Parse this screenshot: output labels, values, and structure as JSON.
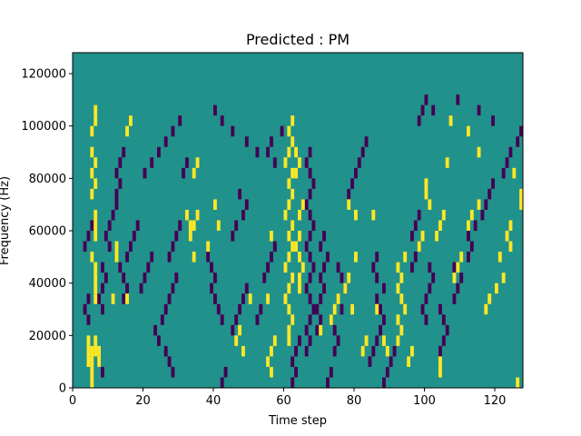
{
  "chart_data": {
    "type": "heatmap",
    "title": "Predicted : PM",
    "xlabel": "Time step",
    "ylabel": "Frequency (Hz)",
    "xlim": [
      0,
      128
    ],
    "ylim": [
      0,
      128000
    ],
    "x_ticks": [
      0,
      20,
      40,
      60,
      80,
      100,
      120
    ],
    "x_tick_labels": [
      "0",
      "20",
      "40",
      "60",
      "80",
      "100",
      "120"
    ],
    "y_ticks": [
      0,
      20000,
      40000,
      60000,
      80000,
      100000,
      120000
    ],
    "y_tick_labels": [
      "0",
      "20000",
      "40000",
      "60000",
      "80000",
      "100000",
      "120000"
    ],
    "grid": false,
    "legend": "none",
    "cell_width_timesteps": 1,
    "cell_height_hz": 4000,
    "colors": {
      "background": "#21918c",
      "low": "#440154",
      "high": "#fde725"
    },
    "high_cells": [
      [
        5,
        0
      ],
      [
        5,
        1
      ],
      [
        5,
        2
      ],
      [
        5,
        3
      ],
      [
        4,
        2
      ],
      [
        4,
        3
      ],
      [
        4,
        4
      ],
      [
        6,
        3
      ],
      [
        6,
        4
      ],
      [
        6,
        14
      ],
      [
        6,
        15
      ],
      [
        6,
        16
      ],
      [
        5,
        18
      ],
      [
        6,
        19
      ],
      [
        5,
        20
      ],
      [
        6,
        21
      ],
      [
        5,
        22
      ],
      [
        6,
        8
      ],
      [
        6,
        9
      ],
      [
        6,
        10
      ],
      [
        6,
        11
      ],
      [
        5,
        12
      ],
      [
        5,
        24
      ],
      [
        6,
        25
      ],
      [
        6,
        26
      ],
      [
        7,
        2
      ],
      [
        7,
        3
      ],
      [
        12,
        12
      ],
      [
        12,
        13
      ],
      [
        11,
        8
      ],
      [
        15,
        8
      ],
      [
        33,
        14
      ],
      [
        34,
        15
      ],
      [
        33,
        15
      ],
      [
        35,
        16
      ],
      [
        32,
        16
      ],
      [
        34,
        20
      ],
      [
        35,
        21
      ],
      [
        46,
        4
      ],
      [
        47,
        5
      ],
      [
        48,
        3
      ],
      [
        50,
        8
      ],
      [
        56,
        3
      ],
      [
        57,
        4
      ],
      [
        55,
        8
      ],
      [
        56,
        14
      ],
      [
        61,
        4
      ],
      [
        61,
        5
      ],
      [
        62,
        6
      ],
      [
        61,
        7
      ],
      [
        60,
        8
      ],
      [
        61,
        9
      ],
      [
        62,
        10
      ],
      [
        60,
        11
      ],
      [
        61,
        12
      ],
      [
        62,
        13
      ],
      [
        61,
        14
      ],
      [
        62,
        15
      ],
      [
        60,
        16
      ],
      [
        61,
        17
      ],
      [
        62,
        18
      ],
      [
        61,
        19
      ],
      [
        62,
        20
      ],
      [
        60,
        21
      ],
      [
        61,
        22
      ],
      [
        62,
        23
      ],
      [
        61,
        24
      ],
      [
        62,
        25
      ],
      [
        64,
        9
      ],
      [
        64,
        10
      ],
      [
        65,
        11
      ],
      [
        64,
        12
      ],
      [
        63,
        13
      ],
      [
        64,
        14
      ],
      [
        64,
        16
      ],
      [
        65,
        17
      ],
      [
        63,
        20
      ],
      [
        64,
        21
      ],
      [
        63,
        22
      ],
      [
        73,
        6
      ],
      [
        74,
        7
      ],
      [
        75,
        8
      ],
      [
        77,
        9
      ],
      [
        78,
        10
      ],
      [
        79,
        7
      ],
      [
        80,
        12
      ],
      [
        82,
        3
      ],
      [
        83,
        4
      ],
      [
        86,
        7
      ],
      [
        92,
        4
      ],
      [
        93,
        5
      ],
      [
        92,
        6
      ],
      [
        94,
        7
      ],
      [
        93,
        8
      ],
      [
        92,
        9
      ],
      [
        93,
        10
      ],
      [
        92,
        11
      ],
      [
        94,
        12
      ],
      [
        95,
        2
      ],
      [
        96,
        3
      ],
      [
        100,
        18
      ],
      [
        100,
        19
      ],
      [
        104,
        1
      ],
      [
        104,
        2
      ],
      [
        103,
        14
      ],
      [
        104,
        15
      ],
      [
        108,
        10
      ],
      [
        109,
        11
      ],
      [
        110,
        12
      ],
      [
        112,
        15
      ],
      [
        113,
        16
      ],
      [
        115,
        17
      ],
      [
        115,
        22
      ],
      [
        117,
        7
      ],
      [
        118,
        8
      ],
      [
        120,
        9
      ],
      [
        122,
        10
      ],
      [
        123,
        14
      ],
      [
        124,
        15
      ],
      [
        126,
        0
      ],
      [
        127,
        17
      ],
      [
        127,
        18
      ],
      [
        128,
        19
      ],
      [
        15,
        24
      ],
      [
        16,
        25
      ],
      [
        34,
        12
      ],
      [
        38,
        13
      ],
      [
        41,
        15
      ],
      [
        40,
        17
      ],
      [
        55,
        2
      ],
      [
        56,
        1
      ],
      [
        70,
        5
      ],
      [
        78,
        17
      ],
      [
        80,
        16
      ],
      [
        85,
        16
      ],
      [
        88,
        4
      ],
      [
        89,
        3
      ],
      [
        98,
        13
      ],
      [
        99,
        14
      ],
      [
        101,
        17
      ],
      [
        105,
        16
      ],
      [
        106,
        21
      ],
      [
        107,
        25
      ],
      [
        112,
        24
      ],
      [
        121,
        12
      ],
      [
        124,
        13
      ],
      [
        125,
        20
      ]
    ],
    "low_cells": [
      [
        4,
        6
      ],
      [
        3,
        7
      ],
      [
        4,
        8
      ],
      [
        3,
        13
      ],
      [
        4,
        14
      ],
      [
        5,
        15
      ],
      [
        8,
        1
      ],
      [
        7,
        2
      ],
      [
        8,
        7
      ],
      [
        7,
        8
      ],
      [
        8,
        9
      ],
      [
        9,
        10
      ],
      [
        8,
        11
      ],
      [
        10,
        13
      ],
      [
        9,
        14
      ],
      [
        10,
        15
      ],
      [
        11,
        16
      ],
      [
        12,
        17
      ],
      [
        12,
        18
      ],
      [
        13,
        19
      ],
      [
        12,
        20
      ],
      [
        13,
        21
      ],
      [
        14,
        22
      ],
      [
        14,
        8
      ],
      [
        15,
        9
      ],
      [
        14,
        10
      ],
      [
        13,
        11
      ],
      [
        15,
        12
      ],
      [
        16,
        13
      ],
      [
        17,
        14
      ],
      [
        18,
        15
      ],
      [
        19,
        9
      ],
      [
        20,
        10
      ],
      [
        21,
        11
      ],
      [
        22,
        12
      ],
      [
        24,
        4
      ],
      [
        23,
        5
      ],
      [
        25,
        6
      ],
      [
        26,
        7
      ],
      [
        27,
        8
      ],
      [
        28,
        9
      ],
      [
        29,
        10
      ],
      [
        26,
        3
      ],
      [
        27,
        2
      ],
      [
        28,
        1
      ],
      [
        27,
        12
      ],
      [
        28,
        13
      ],
      [
        29,
        14
      ],
      [
        30,
        15
      ],
      [
        31,
        20
      ],
      [
        32,
        21
      ],
      [
        38,
        12
      ],
      [
        39,
        11
      ],
      [
        40,
        10
      ],
      [
        39,
        9
      ],
      [
        40,
        8
      ],
      [
        41,
        7
      ],
      [
        42,
        6
      ],
      [
        43,
        1
      ],
      [
        42,
        0
      ],
      [
        45,
        5
      ],
      [
        46,
        6
      ],
      [
        47,
        7
      ],
      [
        48,
        8
      ],
      [
        49,
        9
      ],
      [
        45,
        14
      ],
      [
        46,
        15
      ],
      [
        48,
        16
      ],
      [
        49,
        17
      ],
      [
        47,
        18
      ],
      [
        52,
        6
      ],
      [
        53,
        7
      ],
      [
        54,
        10
      ],
      [
        55,
        11
      ],
      [
        56,
        12
      ],
      [
        57,
        13
      ],
      [
        55,
        22
      ],
      [
        56,
        23
      ],
      [
        62,
        2
      ],
      [
        63,
        3
      ],
      [
        64,
        4
      ],
      [
        63,
        1
      ],
      [
        62,
        0
      ],
      [
        66,
        3
      ],
      [
        67,
        4
      ],
      [
        66,
        5
      ],
      [
        67,
        6
      ],
      [
        68,
        7
      ],
      [
        67,
        8
      ],
      [
        66,
        9
      ],
      [
        67,
        10
      ],
      [
        68,
        11
      ],
      [
        67,
        12
      ],
      [
        66,
        13
      ],
      [
        67,
        14
      ],
      [
        68,
        15
      ],
      [
        67,
        16
      ],
      [
        66,
        17
      ],
      [
        67,
        18
      ],
      [
        68,
        19
      ],
      [
        67,
        20
      ],
      [
        66,
        21
      ],
      [
        67,
        22
      ],
      [
        69,
        5
      ],
      [
        70,
        6
      ],
      [
        69,
        7
      ],
      [
        70,
        8
      ],
      [
        71,
        9
      ],
      [
        70,
        10
      ],
      [
        71,
        11
      ],
      [
        72,
        12
      ],
      [
        70,
        13
      ],
      [
        71,
        14
      ],
      [
        73,
        1
      ],
      [
        72,
        0
      ],
      [
        74,
        3
      ],
      [
        75,
        4
      ],
      [
        74,
        5
      ],
      [
        73,
        6
      ],
      [
        76,
        7
      ],
      [
        75,
        8
      ],
      [
        77,
        9
      ],
      [
        76,
        10
      ],
      [
        75,
        11
      ],
      [
        78,
        18
      ],
      [
        79,
        19
      ],
      [
        80,
        20
      ],
      [
        81,
        21
      ],
      [
        82,
        22
      ],
      [
        83,
        23
      ],
      [
        84,
        2
      ],
      [
        85,
        3
      ],
      [
        86,
        4
      ],
      [
        87,
        5
      ],
      [
        88,
        6
      ],
      [
        87,
        7
      ],
      [
        86,
        8
      ],
      [
        88,
        9
      ],
      [
        86,
        10
      ],
      [
        85,
        11
      ],
      [
        86,
        12
      ],
      [
        89,
        1
      ],
      [
        88,
        0
      ],
      [
        90,
        2
      ],
      [
        91,
        3
      ],
      [
        92,
        4
      ],
      [
        96,
        11
      ],
      [
        97,
        12
      ],
      [
        98,
        13
      ],
      [
        96,
        14
      ],
      [
        97,
        15
      ],
      [
        98,
        16
      ],
      [
        100,
        6
      ],
      [
        99,
        7
      ],
      [
        100,
        8
      ],
      [
        101,
        9
      ],
      [
        102,
        10
      ],
      [
        101,
        11
      ],
      [
        104,
        3
      ],
      [
        105,
        4
      ],
      [
        106,
        5
      ],
      [
        105,
        6
      ],
      [
        104,
        7
      ],
      [
        108,
        8
      ],
      [
        109,
        9
      ],
      [
        110,
        10
      ],
      [
        108,
        11
      ],
      [
        112,
        12
      ],
      [
        113,
        13
      ],
      [
        112,
        14
      ],
      [
        114,
        15
      ],
      [
        116,
        16
      ],
      [
        117,
        17
      ],
      [
        118,
        18
      ],
      [
        119,
        19
      ],
      [
        122,
        20
      ],
      [
        123,
        21
      ],
      [
        124,
        22
      ],
      [
        126,
        23
      ],
      [
        127,
        24
      ],
      [
        98,
        25
      ],
      [
        99,
        26
      ],
      [
        100,
        27
      ],
      [
        102,
        26
      ],
      [
        109,
        27
      ],
      [
        115,
        26
      ],
      [
        119,
        25
      ],
      [
        20,
        20
      ],
      [
        22,
        21
      ],
      [
        24,
        22
      ],
      [
        26,
        23
      ],
      [
        28,
        24
      ],
      [
        30,
        25
      ],
      [
        40,
        26
      ],
      [
        42,
        25
      ],
      [
        45,
        24
      ],
      [
        49,
        23
      ],
      [
        52,
        22
      ],
      [
        57,
        21
      ],
      [
        59,
        24
      ]
    ]
  }
}
